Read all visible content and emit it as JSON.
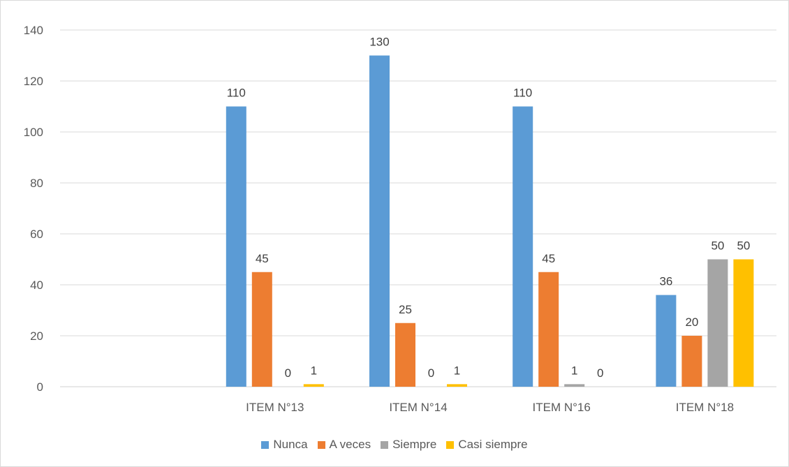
{
  "chart_data": {
    "type": "bar",
    "title": "",
    "xlabel": "",
    "ylabel": "",
    "categories": [
      "",
      "ITEM N°13",
      "ITEM N°14",
      "ITEM N°16",
      "ITEM N°18"
    ],
    "ylim": [
      0,
      140
    ],
    "yticks": [
      0,
      20,
      40,
      60,
      80,
      100,
      120,
      140
    ],
    "grid": true,
    "legend_position": "bottom",
    "series": [
      {
        "name": "Nunca",
        "color": "#5B9BD5",
        "values": [
          null,
          110,
          130,
          110,
          36
        ]
      },
      {
        "name": "A veces",
        "color": "#ED7D31",
        "values": [
          null,
          45,
          25,
          45,
          20
        ]
      },
      {
        "name": "Siempre",
        "color": "#A5A5A5",
        "values": [
          null,
          0,
          0,
          1,
          50
        ]
      },
      {
        "name": "Casi siempre",
        "color": "#FFC000",
        "values": [
          null,
          1,
          1,
          0,
          50
        ]
      }
    ]
  }
}
